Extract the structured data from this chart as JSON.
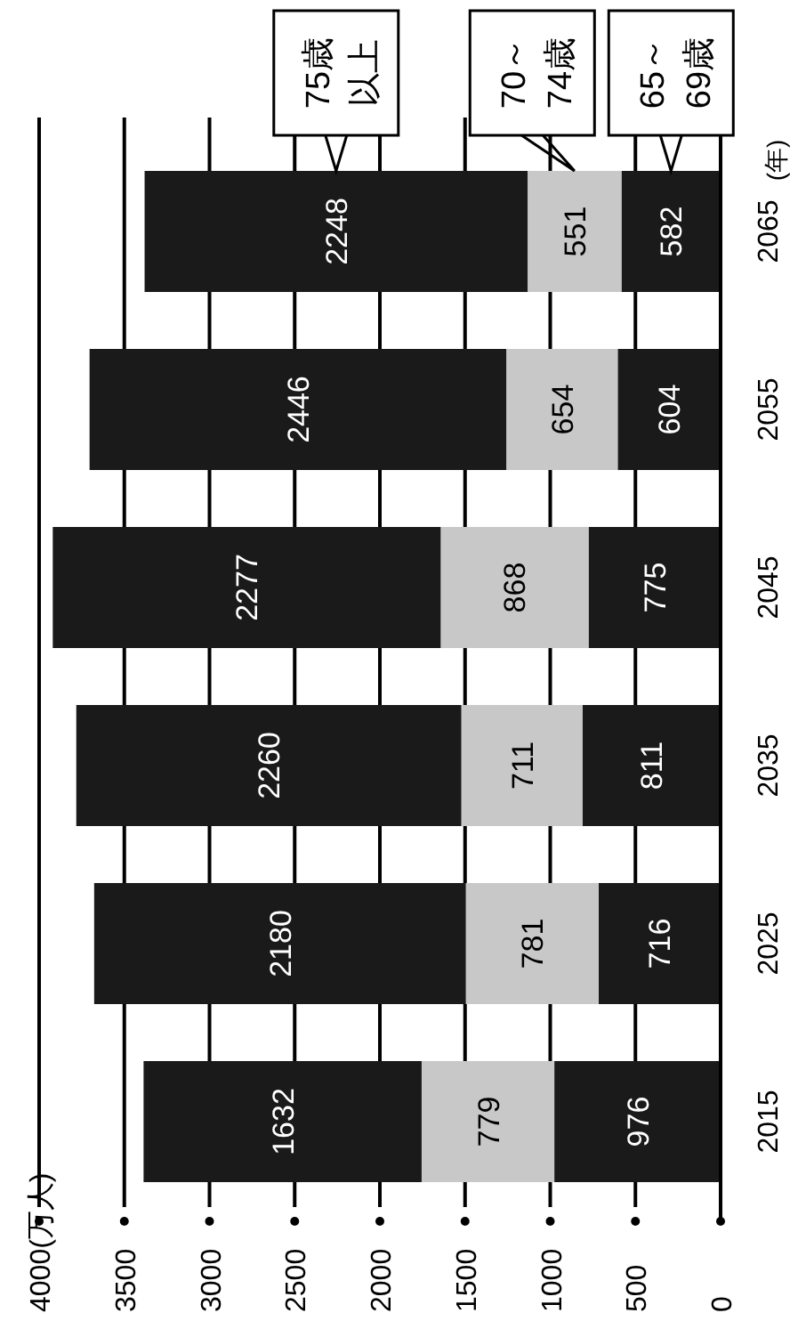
{
  "chart_data": {
    "type": "bar",
    "stacked": true,
    "orientation": "horizontal",
    "categories": [
      "2065",
      "2055",
      "2045",
      "2035",
      "2025",
      "2015"
    ],
    "ylabel": "(年)",
    "series": [
      {
        "name": "65～69歳",
        "color": "#1a1a1a",
        "values": [
          582,
          604,
          775,
          811,
          716,
          976
        ]
      },
      {
        "name": "70～74歳",
        "color": "#c8c8c8",
        "values": [
          551,
          654,
          868,
          711,
          781,
          779
        ]
      },
      {
        "name": "75歳以上",
        "color": "#1a1a1a",
        "values": [
          2248,
          2446,
          2277,
          2260,
          2180,
          1632
        ]
      }
    ],
    "xlim": [
      4000,
      0
    ],
    "xticks": [
      {
        "value": 4000,
        "label": "4000(万人)"
      },
      3500,
      3000,
      2500,
      2000,
      1500,
      1000,
      500,
      0
    ],
    "grid": "x",
    "data_labels": true,
    "legend": "top right"
  }
}
